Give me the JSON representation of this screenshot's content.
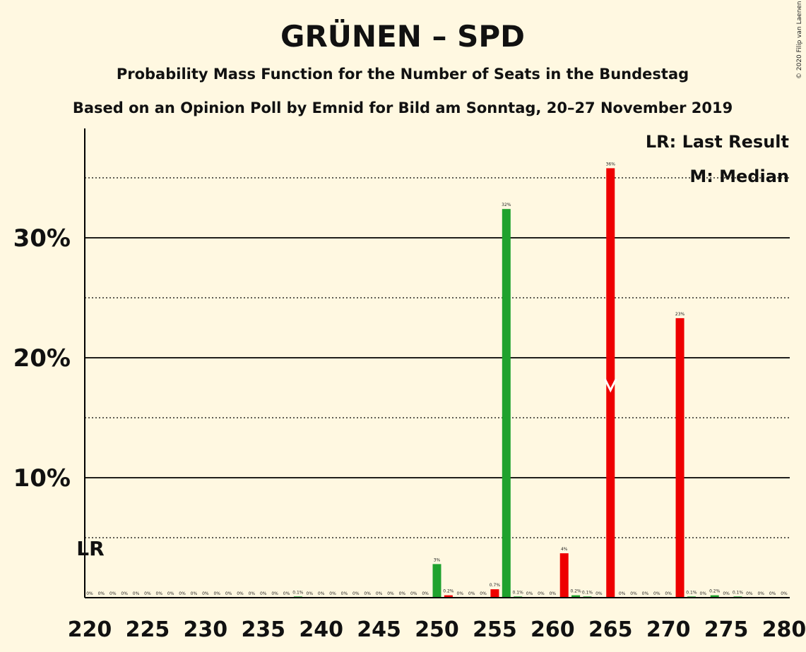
{
  "copyright": "© 2020 Filip van Laenen",
  "colors": {
    "background": "#FFF8E1",
    "green": "#1FA22E",
    "red": "#EE0000",
    "axis": "#000000"
  },
  "chart_data": {
    "type": "bar",
    "title": "GRÜNEN – SPD",
    "subtitle": "Probability Mass Function for the Number of Seats in the Bundestag",
    "subtitle2": "Based on an Opinion Poll by Emnid for Bild am Sonntag, 20–27 November 2019",
    "legend": [
      "LR: Last Result",
      "M: Median"
    ],
    "legend_position": "top-right",
    "last_result_label": "LR",
    "last_result_seat": 220,
    "median_seat": 265,
    "median_marker": "M",
    "xlim": [
      220,
      280
    ],
    "ylim": [
      0,
      38
    ],
    "x_ticks": [
      220,
      225,
      230,
      235,
      240,
      245,
      250,
      255,
      260,
      265,
      270,
      275,
      280
    ],
    "y_ticks_labeled": [
      {
        "value": 10,
        "label": "10%"
      },
      {
        "value": 20,
        "label": "20%"
      },
      {
        "value": 30,
        "label": "30%"
      }
    ],
    "y_ticks_dotted": [
      5,
      15,
      25,
      35
    ],
    "bars": [
      {
        "x": 220,
        "value": 0,
        "label": "0%",
        "color": "green"
      },
      {
        "x": 221,
        "value": 0,
        "label": "0%",
        "color": "green"
      },
      {
        "x": 222,
        "value": 0,
        "label": "0%",
        "color": "green"
      },
      {
        "x": 223,
        "value": 0,
        "label": "0%",
        "color": "green"
      },
      {
        "x": 224,
        "value": 0,
        "label": "0%",
        "color": "green"
      },
      {
        "x": 225,
        "value": 0,
        "label": "0%",
        "color": "green"
      },
      {
        "x": 226,
        "value": 0,
        "label": "0%",
        "color": "green"
      },
      {
        "x": 227,
        "value": 0,
        "label": "0%",
        "color": "green"
      },
      {
        "x": 228,
        "value": 0,
        "label": "0%",
        "color": "green"
      },
      {
        "x": 229,
        "value": 0,
        "label": "0%",
        "color": "green"
      },
      {
        "x": 230,
        "value": 0,
        "label": "0%",
        "color": "green"
      },
      {
        "x": 231,
        "value": 0,
        "label": "0%",
        "color": "green"
      },
      {
        "x": 232,
        "value": 0,
        "label": "0%",
        "color": "green"
      },
      {
        "x": 233,
        "value": 0,
        "label": "0%",
        "color": "green"
      },
      {
        "x": 234,
        "value": 0,
        "label": "0%",
        "color": "green"
      },
      {
        "x": 235,
        "value": 0,
        "label": "0%",
        "color": "green"
      },
      {
        "x": 236,
        "value": 0,
        "label": "0%",
        "color": "green"
      },
      {
        "x": 237,
        "value": 0,
        "label": "0%",
        "color": "green"
      },
      {
        "x": 238,
        "value": 0.1,
        "label": "0.1%",
        "color": "green"
      },
      {
        "x": 239,
        "value": 0,
        "label": "0%",
        "color": "green"
      },
      {
        "x": 240,
        "value": 0,
        "label": "0%",
        "color": "green"
      },
      {
        "x": 241,
        "value": 0,
        "label": "0%",
        "color": "green"
      },
      {
        "x": 242,
        "value": 0,
        "label": "0%",
        "color": "green"
      },
      {
        "x": 243,
        "value": 0,
        "label": "0%",
        "color": "green"
      },
      {
        "x": 244,
        "value": 0,
        "label": "0%",
        "color": "green"
      },
      {
        "x": 245,
        "value": 0,
        "label": "0%",
        "color": "green"
      },
      {
        "x": 246,
        "value": 0,
        "label": "0%",
        "color": "green"
      },
      {
        "x": 247,
        "value": 0,
        "label": "0%",
        "color": "green"
      },
      {
        "x": 248,
        "value": 0,
        "label": "0%",
        "color": "green"
      },
      {
        "x": 249,
        "value": 0,
        "label": "0%",
        "color": "green"
      },
      {
        "x": 250,
        "value": 2.8,
        "label": "3%",
        "color": "green"
      },
      {
        "x": 251,
        "value": 0.2,
        "label": "0.2%",
        "color": "red"
      },
      {
        "x": 252,
        "value": 0,
        "label": "0%",
        "color": "green"
      },
      {
        "x": 253,
        "value": 0,
        "label": "0%",
        "color": "green"
      },
      {
        "x": 254,
        "value": 0,
        "label": "0%",
        "color": "green"
      },
      {
        "x": 255,
        "value": 0.7,
        "label": "0.7%",
        "color": "red"
      },
      {
        "x": 256,
        "value": 32.4,
        "label": "32%",
        "color": "green"
      },
      {
        "x": 257,
        "value": 0.1,
        "label": "0.1%",
        "color": "green"
      },
      {
        "x": 258,
        "value": 0,
        "label": "0%",
        "color": "green"
      },
      {
        "x": 259,
        "value": 0,
        "label": "0%",
        "color": "green"
      },
      {
        "x": 260,
        "value": 0,
        "label": "0%",
        "color": "green"
      },
      {
        "x": 261,
        "value": 3.7,
        "label": "4%",
        "color": "red"
      },
      {
        "x": 262,
        "value": 0.2,
        "label": "0.2%",
        "color": "green"
      },
      {
        "x": 263,
        "value": 0.1,
        "label": "0.1%",
        "color": "green"
      },
      {
        "x": 264,
        "value": 0,
        "label": "0%",
        "color": "green"
      },
      {
        "x": 265,
        "value": 35.8,
        "label": "36%",
        "color": "red"
      },
      {
        "x": 266,
        "value": 0,
        "label": "0%",
        "color": "green"
      },
      {
        "x": 267,
        "value": 0,
        "label": "0%",
        "color": "green"
      },
      {
        "x": 268,
        "value": 0,
        "label": "0%",
        "color": "green"
      },
      {
        "x": 269,
        "value": 0,
        "label": "0%",
        "color": "green"
      },
      {
        "x": 270,
        "value": 0,
        "label": "0%",
        "color": "green"
      },
      {
        "x": 271,
        "value": 23.3,
        "label": "23%",
        "color": "red"
      },
      {
        "x": 272,
        "value": 0.1,
        "label": "0.1%",
        "color": "green"
      },
      {
        "x": 273,
        "value": 0,
        "label": "0%",
        "color": "green"
      },
      {
        "x": 274,
        "value": 0.2,
        "label": "0.2%",
        "color": "green"
      },
      {
        "x": 275,
        "value": 0,
        "label": "0%",
        "color": "green"
      },
      {
        "x": 276,
        "value": 0.1,
        "label": "0.1%",
        "color": "green"
      },
      {
        "x": 277,
        "value": 0,
        "label": "0%",
        "color": "green"
      },
      {
        "x": 278,
        "value": 0,
        "label": "0%",
        "color": "green"
      },
      {
        "x": 279,
        "value": 0,
        "label": "0%",
        "color": "green"
      },
      {
        "x": 280,
        "value": 0,
        "label": "0%",
        "color": "green"
      }
    ]
  }
}
